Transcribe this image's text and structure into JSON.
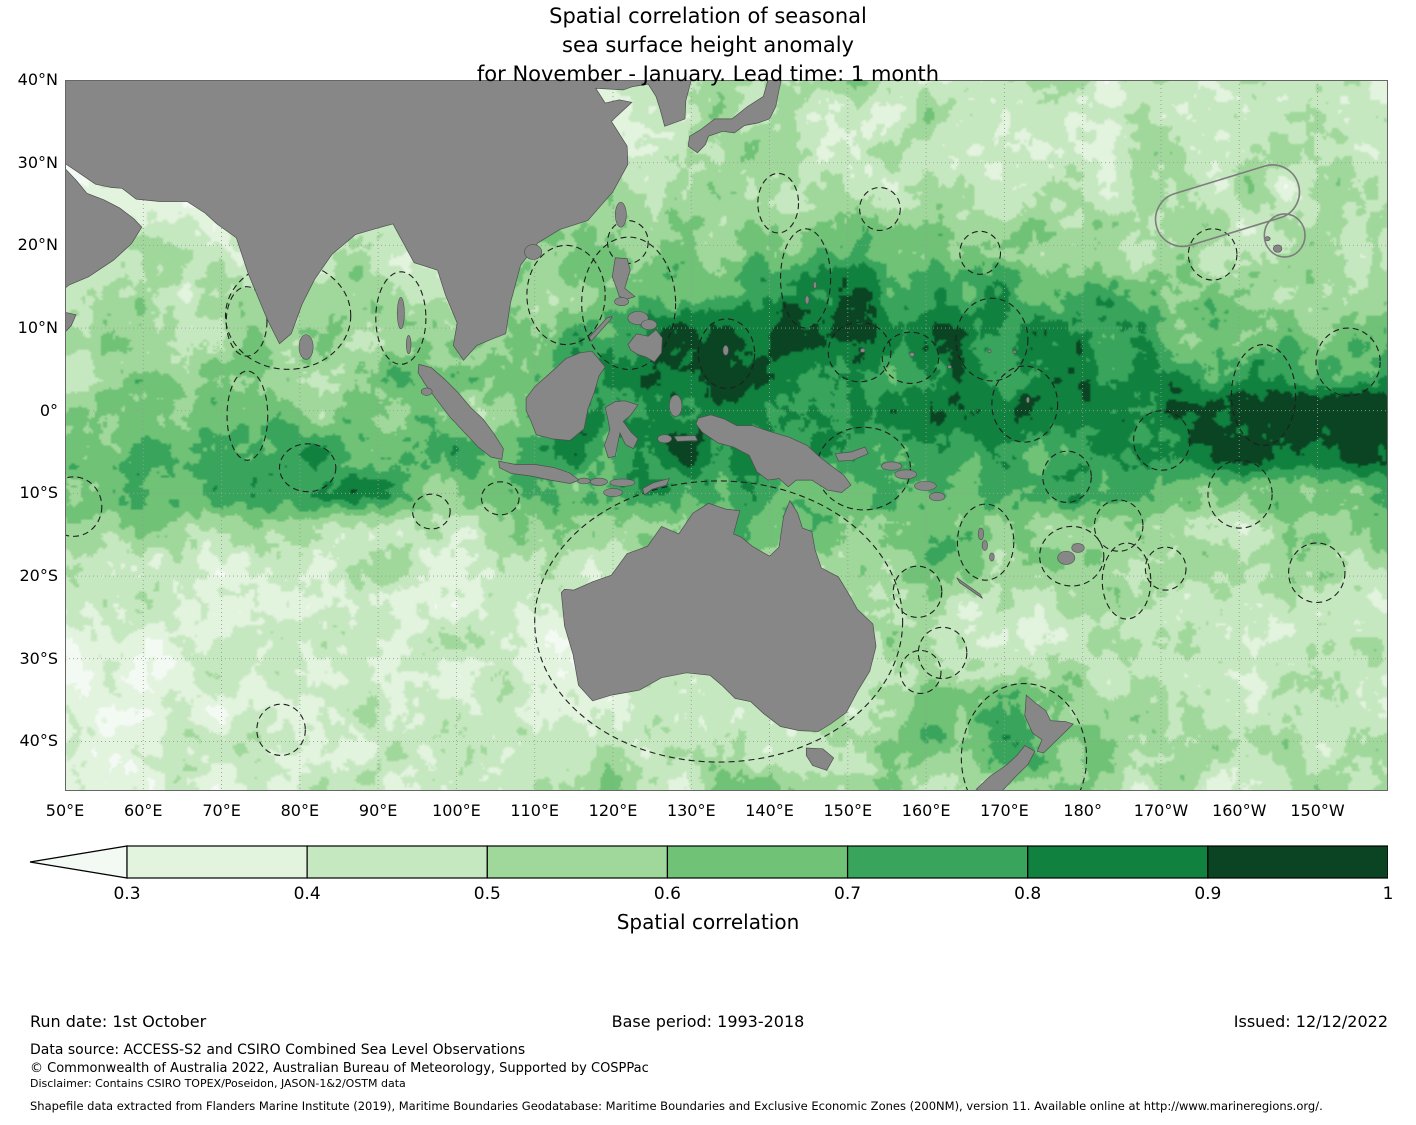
{
  "title": {
    "line1": "Spatial correlation of seasonal",
    "line2": "sea surface height anomaly",
    "line3": "for November - January. Lead time: 1 month"
  },
  "footer": {
    "run_date": "Run date: 1st October",
    "base_period": "Base period: 1993-2018",
    "issued": "Issued: 12/12/2022",
    "data_source": "Data source: ACCESS-S2 and CSIRO Combined Sea Level Observations",
    "copyright": "© Commonwealth of Australia 2022, Australian Bureau of Meteorology, Supported by COSPPac",
    "disclaimer": "Disclaimer: Contains CSIRO TOPEX/Poseidon, JASON-1&2/OSTM data",
    "shapefile": "Shapefile data extracted from Flanders Marine Institute (2019), Maritime Boundaries Geodatabase: Maritime Boundaries and Exclusive Economic Zones (200NM), version 11. Available online at http://www.marineregions.org/."
  },
  "chart_data": {
    "type": "heatmap",
    "subtype": "filled_contour_geographic_map",
    "title": "Spatial correlation of seasonal sea surface height anomaly for November - January. Lead time: 1 month",
    "colorbar": {
      "label": "Spatial correlation",
      "tick_labels": [
        "0.3",
        "0.4",
        "0.5",
        "0.6",
        "0.7",
        "0.8",
        "0.9",
        "1"
      ],
      "levels": [
        0.3,
        0.4,
        0.5,
        0.6,
        0.7,
        0.8,
        0.9,
        1.0
      ],
      "extend": "min",
      "under_color": "#f3faf3",
      "colors": [
        "#e2f3de",
        "#c6e8c0",
        "#a0d89b",
        "#6fc276",
        "#38a45c",
        "#11813f",
        "#0a4422"
      ]
    },
    "lon_range": [
      50,
      219
    ],
    "lat_range": [
      -46,
      40
    ],
    "x_tick_labels": [
      "50°E",
      "60°E",
      "70°E",
      "80°E",
      "90°E",
      "100°E",
      "110°E",
      "120°E",
      "130°E",
      "140°E",
      "150°E",
      "160°E",
      "170°E",
      "180°",
      "170°W",
      "160°W",
      "150°W"
    ],
    "y_tick_labels": [
      "40°N",
      "30°N",
      "20°N",
      "10°N",
      "0°",
      "10°S",
      "20°S",
      "30°S",
      "40°S"
    ],
    "land_color": "#878787",
    "coastline_color": "#4f4f4f",
    "grid_on": true,
    "boundaries": "dashed EEZ maritime boundary outlines over ocean",
    "grid": {
      "lons": [
        50,
        60,
        70,
        80,
        90,
        100,
        110,
        120,
        130,
        140,
        150,
        160,
        170,
        180,
        190,
        200,
        210,
        220
      ],
      "lats": [
        40,
        35,
        30,
        25,
        20,
        15,
        10,
        5,
        0,
        -5,
        -10,
        -15,
        -20,
        -25,
        -30,
        -35,
        -40,
        -45
      ],
      "values": [
        [
          0.35,
          0.3,
          0.3,
          0.3,
          0.3,
          0.3,
          0.3,
          0.35,
          0.5,
          0.45,
          0.55,
          0.45,
          0.5,
          0.45,
          0.4,
          0.45,
          0.5,
          0.4
        ],
        [
          0.3,
          0.3,
          0.3,
          0.3,
          0.3,
          0.3,
          0.3,
          0.35,
          0.45,
          0.5,
          0.45,
          0.5,
          0.45,
          0.4,
          0.45,
          0.4,
          0.45,
          0.45
        ],
        [
          0.3,
          0.3,
          0.3,
          0.3,
          0.3,
          0.3,
          0.35,
          0.45,
          0.5,
          0.55,
          0.45,
          0.5,
          0.45,
          0.45,
          0.5,
          0.45,
          0.5,
          0.45
        ],
        [
          0.35,
          0.35,
          0.3,
          0.4,
          0.45,
          0.3,
          0.4,
          0.5,
          0.55,
          0.5,
          0.55,
          0.5,
          0.45,
          0.5,
          0.45,
          0.5,
          0.45,
          0.5
        ],
        [
          0.4,
          0.5,
          0.4,
          0.45,
          0.5,
          0.45,
          0.5,
          0.55,
          0.6,
          0.6,
          0.6,
          0.6,
          0.55,
          0.5,
          0.5,
          0.45,
          0.5,
          0.5
        ],
        [
          0.45,
          0.5,
          0.45,
          0.5,
          0.55,
          0.5,
          0.55,
          0.6,
          0.7,
          0.78,
          0.8,
          0.75,
          0.7,
          0.65,
          0.6,
          0.55,
          0.55,
          0.55
        ],
        [
          0.5,
          0.55,
          0.5,
          0.55,
          0.6,
          0.55,
          0.6,
          0.7,
          0.85,
          0.9,
          0.9,
          0.85,
          0.8,
          0.75,
          0.7,
          0.65,
          0.6,
          0.6
        ],
        [
          0.5,
          0.55,
          0.55,
          0.6,
          0.6,
          0.6,
          0.65,
          0.75,
          0.85,
          0.9,
          0.85,
          0.85,
          0.8,
          0.8,
          0.8,
          0.75,
          0.75,
          0.7
        ],
        [
          0.6,
          0.65,
          0.6,
          0.6,
          0.65,
          0.6,
          0.7,
          0.8,
          0.85,
          0.85,
          0.8,
          0.8,
          0.8,
          0.85,
          0.9,
          0.95,
          0.95,
          0.95
        ],
        [
          0.6,
          0.7,
          0.75,
          0.8,
          0.7,
          0.7,
          0.75,
          0.8,
          0.85,
          0.8,
          0.8,
          0.75,
          0.75,
          0.8,
          0.85,
          0.9,
          0.9,
          0.9
        ],
        [
          0.65,
          0.7,
          0.7,
          0.8,
          0.75,
          0.6,
          0.7,
          0.75,
          0.8,
          0.7,
          0.7,
          0.7,
          0.65,
          0.7,
          0.7,
          0.6,
          0.65,
          0.7
        ],
        [
          0.5,
          0.55,
          0.5,
          0.55,
          0.5,
          0.45,
          0.55,
          0.5,
          0.6,
          0.65,
          0.65,
          0.7,
          0.65,
          0.6,
          0.55,
          0.5,
          0.55,
          0.6
        ],
        [
          0.4,
          0.45,
          0.4,
          0.45,
          0.5,
          0.4,
          0.45,
          0.4,
          0.5,
          0.55,
          0.55,
          0.6,
          0.55,
          0.5,
          0.45,
          0.45,
          0.5,
          0.45
        ],
        [
          0.35,
          0.4,
          0.35,
          0.4,
          0.45,
          0.4,
          0.4,
          0.35,
          0.45,
          0.45,
          0.5,
          0.5,
          0.45,
          0.45,
          0.4,
          0.45,
          0.4,
          0.45
        ],
        [
          0.3,
          0.35,
          0.4,
          0.35,
          0.4,
          0.45,
          0.35,
          0.3,
          0.4,
          0.45,
          0.45,
          0.5,
          0.45,
          0.5,
          0.45,
          0.5,
          0.45,
          0.5
        ],
        [
          0.35,
          0.4,
          0.35,
          0.4,
          0.45,
          0.4,
          0.45,
          0.4,
          0.45,
          0.4,
          0.5,
          0.6,
          0.7,
          0.55,
          0.5,
          0.45,
          0.5,
          0.45
        ],
        [
          0.3,
          0.35,
          0.4,
          0.45,
          0.4,
          0.45,
          0.5,
          0.45,
          0.5,
          0.45,
          0.55,
          0.65,
          0.75,
          0.6,
          0.5,
          0.55,
          0.5,
          0.55
        ],
        [
          0.35,
          0.35,
          0.4,
          0.4,
          0.45,
          0.4,
          0.5,
          0.55,
          0.5,
          0.55,
          0.5,
          0.55,
          0.6,
          0.55,
          0.5,
          0.45,
          0.5,
          0.45
        ]
      ]
    }
  }
}
